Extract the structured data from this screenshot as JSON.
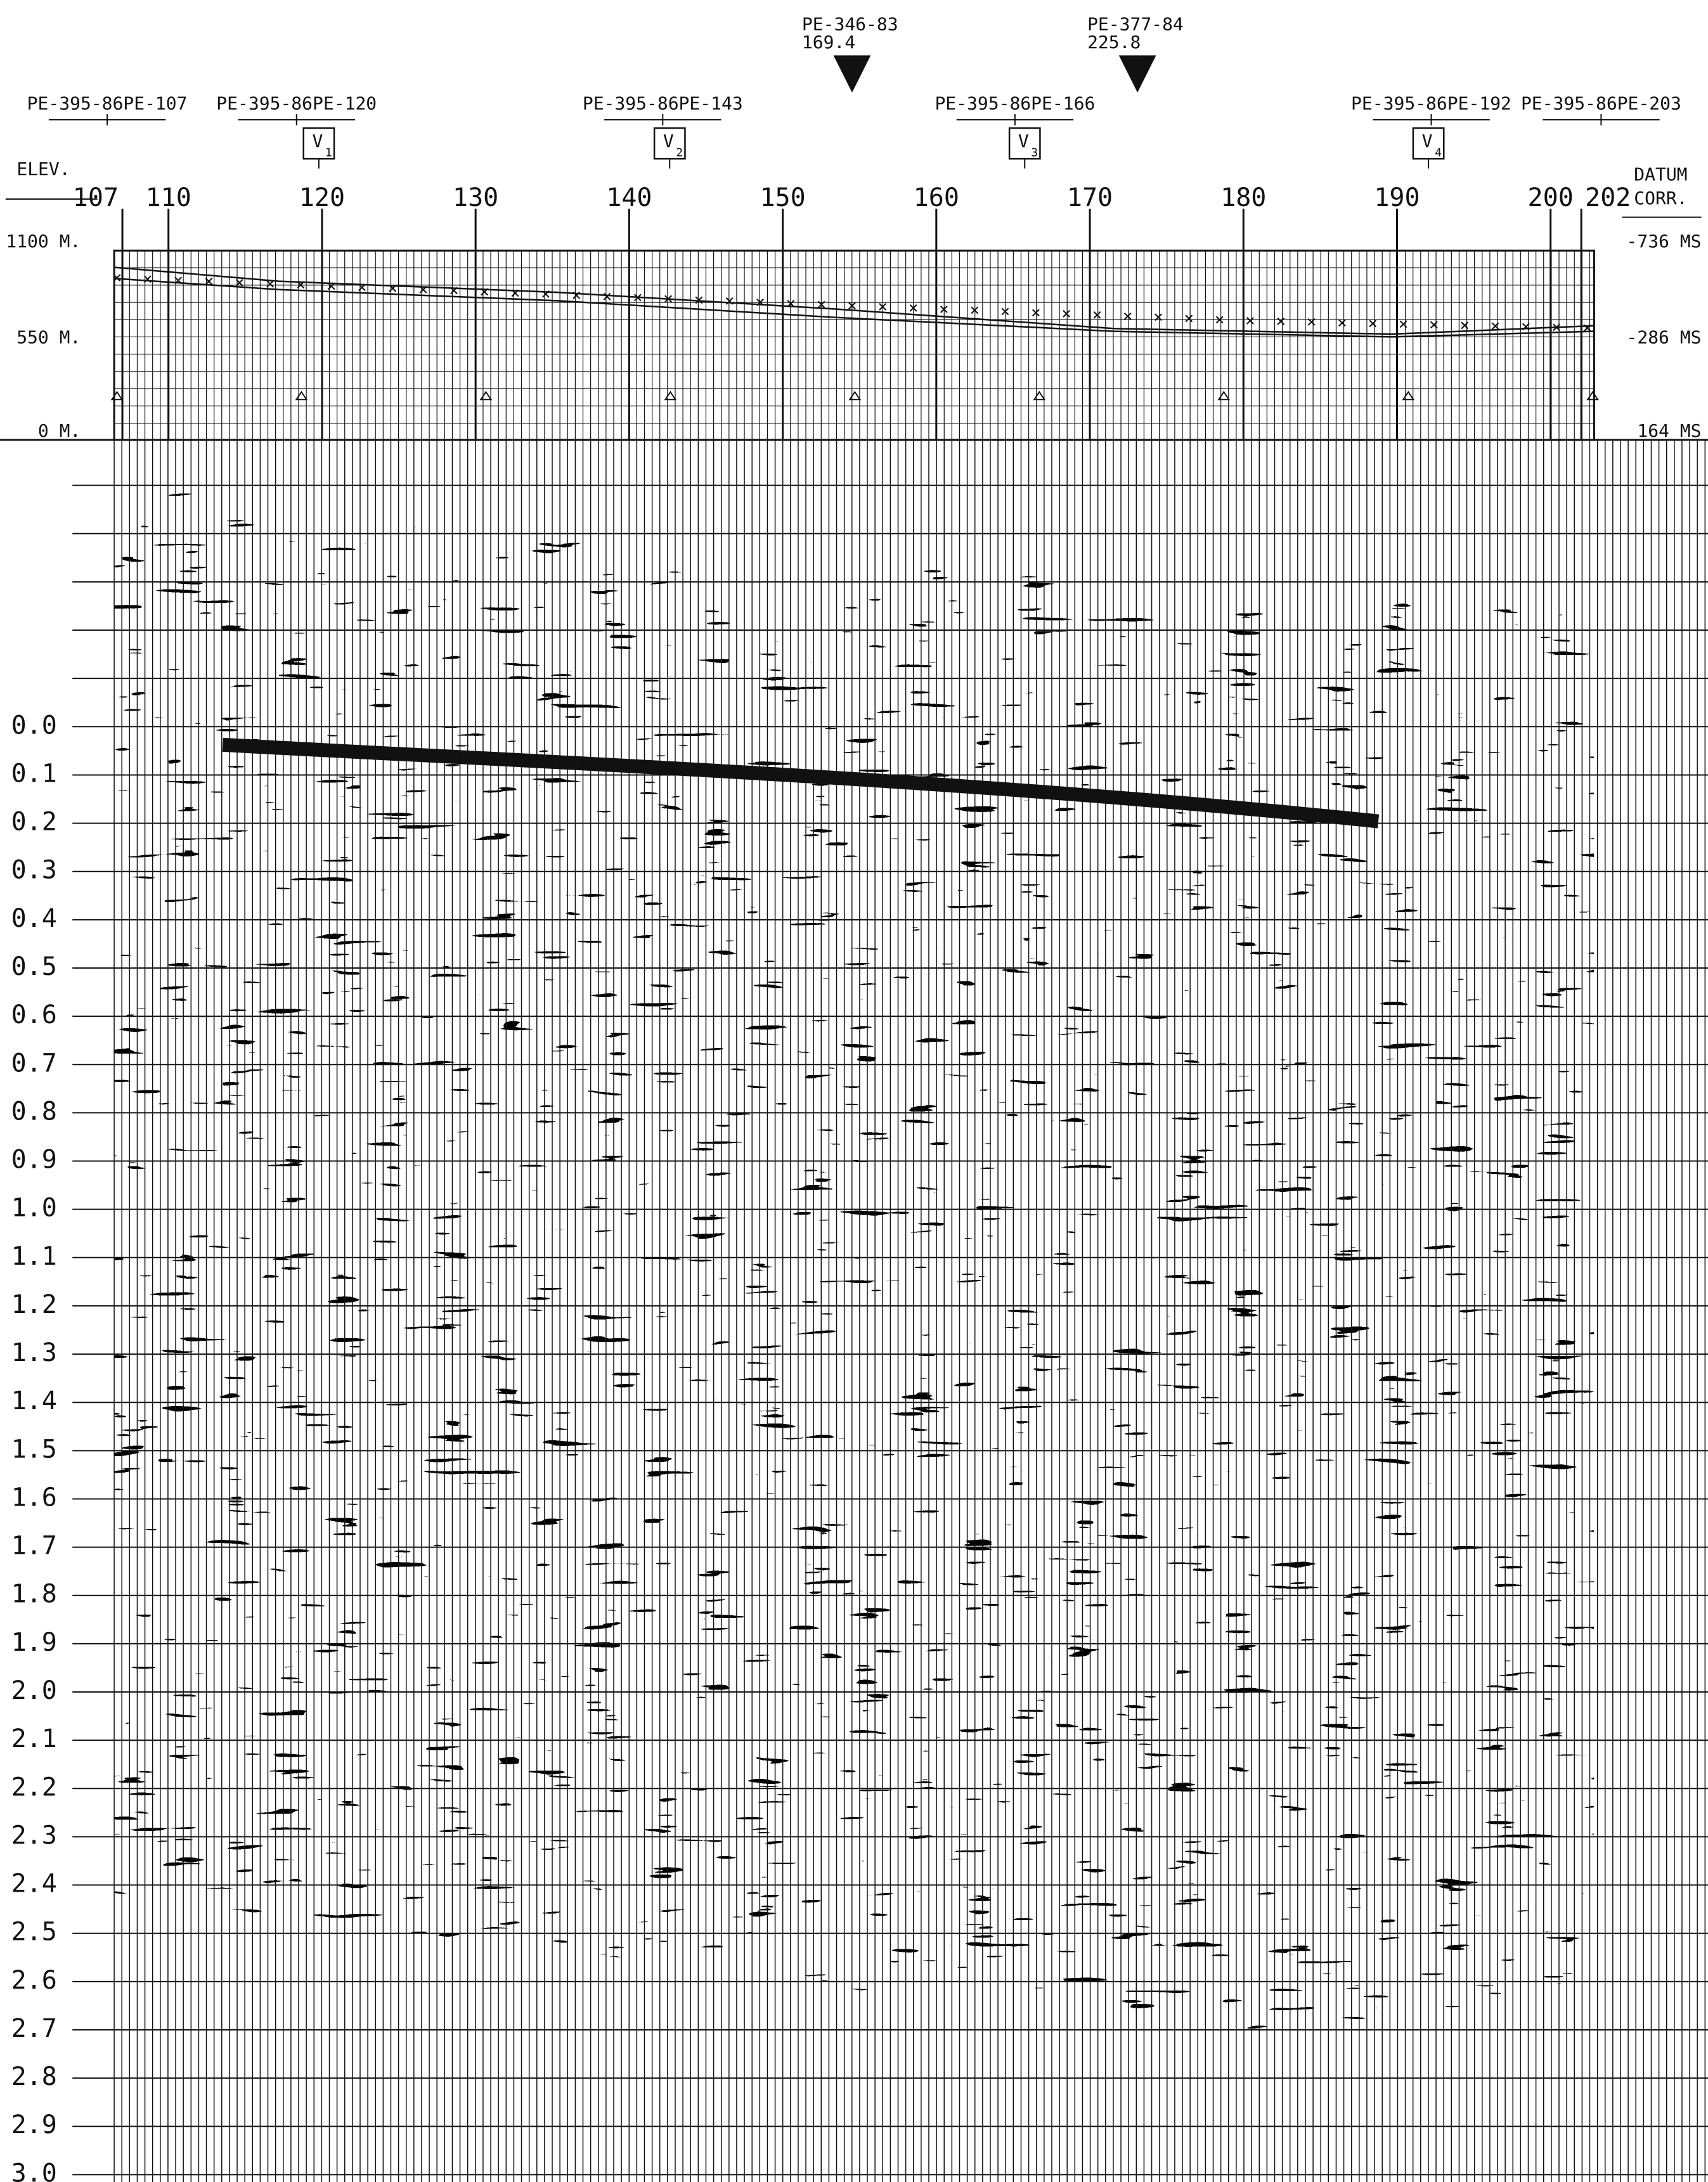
{
  "header": {
    "shotpoints": [
      "PE-395-86PE-107",
      "PE-395-86PE-120",
      "PE-395-86PE-143",
      "PE-395-86PE-166",
      "PE-395-86PE-192",
      "PE-395-86PE-203"
    ],
    "wells": [
      {
        "name": "PE-346-83",
        "value": 169.4
      },
      {
        "name": "PE-377-84",
        "value": 225.8
      }
    ],
    "velocity_labels": [
      "V",
      "V",
      "V",
      "V"
    ],
    "velocity_subscripts": [
      "1",
      "2",
      "3",
      "4"
    ]
  },
  "elevation": {
    "title": "ELEV.",
    "labels": [
      "1100 M.",
      "550 M.",
      "0 M."
    ]
  },
  "datum": {
    "title": "DATUM",
    "subtitle": "CORR.",
    "labels": [
      "-736 MS",
      "-286 MS",
      "164 MS"
    ]
  },
  "stations": [
    107,
    110,
    120,
    130,
    140,
    150,
    160,
    170,
    180,
    190,
    200,
    202
  ],
  "time_labels": [
    "0.0",
    "0.1",
    "0.2",
    "0.3",
    "0.4",
    "0.5",
    "0.6",
    "0.7",
    "0.8",
    "0.9",
    "1.0",
    "1.1",
    "1.2",
    "1.3",
    "1.4",
    "1.5",
    "1.6",
    "1.7",
    "1.8",
    "1.9",
    "2.0",
    "2.1",
    "2.2",
    "2.3",
    "2.4",
    "2.5",
    "2.6",
    "2.7",
    "2.8",
    "2.9",
    "3.0"
  ]
}
